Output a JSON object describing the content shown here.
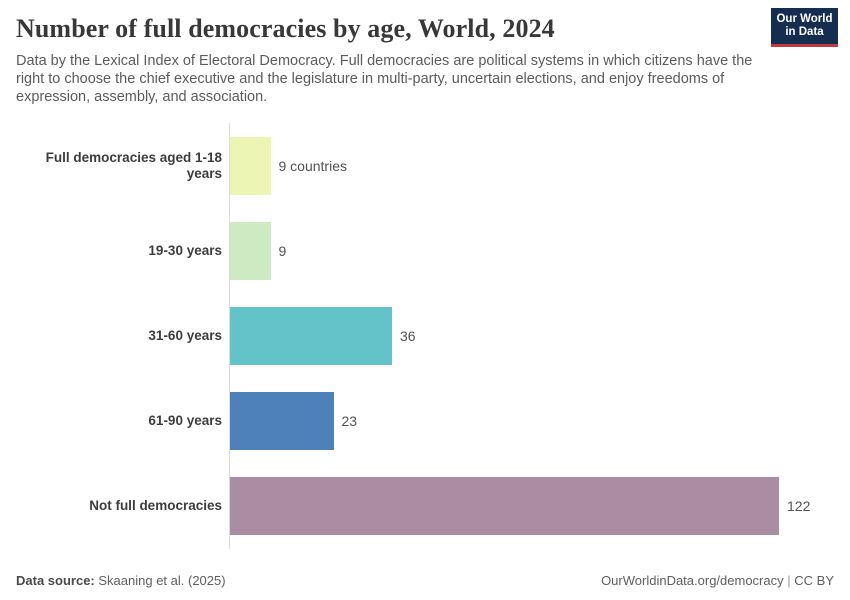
{
  "header": {
    "title": "Number of full democracies by age, World, 2024",
    "subtitle": "Data by the Lexical Index of Electoral Democracy. Full democracies are political systems in which citizens have the right to choose the chief executive and the legislature in multi-party, uncertain elections, and enjoy freedoms of expression, assembly, and association.",
    "logo": {
      "line1": "Our World",
      "line2": "in Data"
    }
  },
  "chart_data": {
    "type": "bar",
    "orientation": "horizontal",
    "title": "Number of full democracies by age, World, 2024",
    "categories": [
      "Full democracies aged 1-18 years",
      "19-30 years",
      "31-60 years",
      "61-90 years",
      "Not full democracies"
    ],
    "values": [
      9,
      9,
      36,
      23,
      122
    ],
    "value_labels": [
      "9 countries",
      "9",
      "36",
      "23",
      "122"
    ],
    "bar_colors": [
      "#ecf5b2",
      "#cdeac3",
      "#63c3c9",
      "#4e80b9",
      "#aa8da2"
    ],
    "xlim": [
      0,
      122
    ],
    "grid": false,
    "legend": "none",
    "unit": "countries"
  },
  "footer": {
    "datasource_label": "Data source:",
    "datasource_value": "Skaaning et al. (2025)",
    "link": "OurWorldinData.org/democracy",
    "separator": "|",
    "license": "CC BY"
  },
  "colors": {
    "logo_bg": "#152d4e",
    "logo_stripe": "#c0393f",
    "axis": "#dcdcdc",
    "title_text": "#383838",
    "subtitle_text": "#5b5b5b"
  }
}
